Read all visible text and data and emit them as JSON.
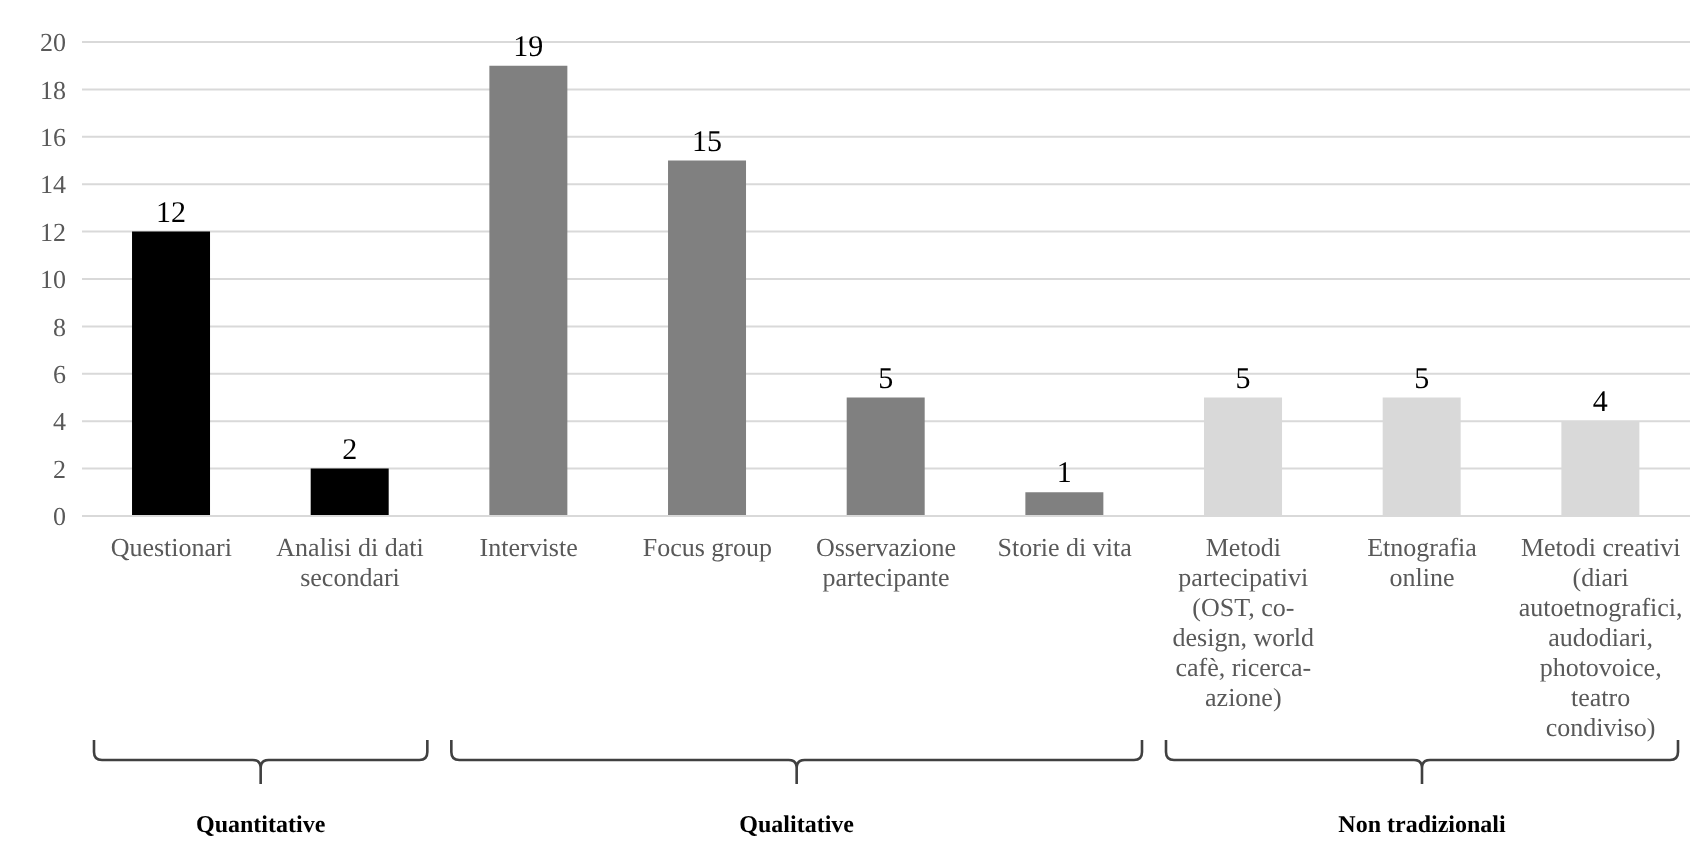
{
  "chart_data": {
    "type": "bar",
    "categories": [
      "Questionari",
      "Analisi di dati secondari",
      "Interviste",
      "Focus group",
      "Osservazione partecipante",
      "Storie di vita",
      "Metodi partecipativi (OST, co-design, world cafè, ricerca-azione)",
      "Etnografia online",
      "Metodi creativi (diari autoetnografici, audodiari, photovoice, teatro condiviso)"
    ],
    "values": [
      12,
      2,
      19,
      15,
      5,
      1,
      5,
      5,
      4
    ],
    "colors": [
      "#000000",
      "#000000",
      "#808080",
      "#808080",
      "#808080",
      "#808080",
      "#d9d9d9",
      "#d9d9d9",
      "#d9d9d9"
    ],
    "ylim": [
      0,
      20
    ],
    "yticks": [
      0,
      2,
      4,
      6,
      8,
      10,
      12,
      14,
      16,
      18,
      20
    ],
    "grid": "y",
    "data_labels": true,
    "annotations": [
      "Quantitative",
      "Qualitative",
      "Non tradizionali"
    ]
  }
}
